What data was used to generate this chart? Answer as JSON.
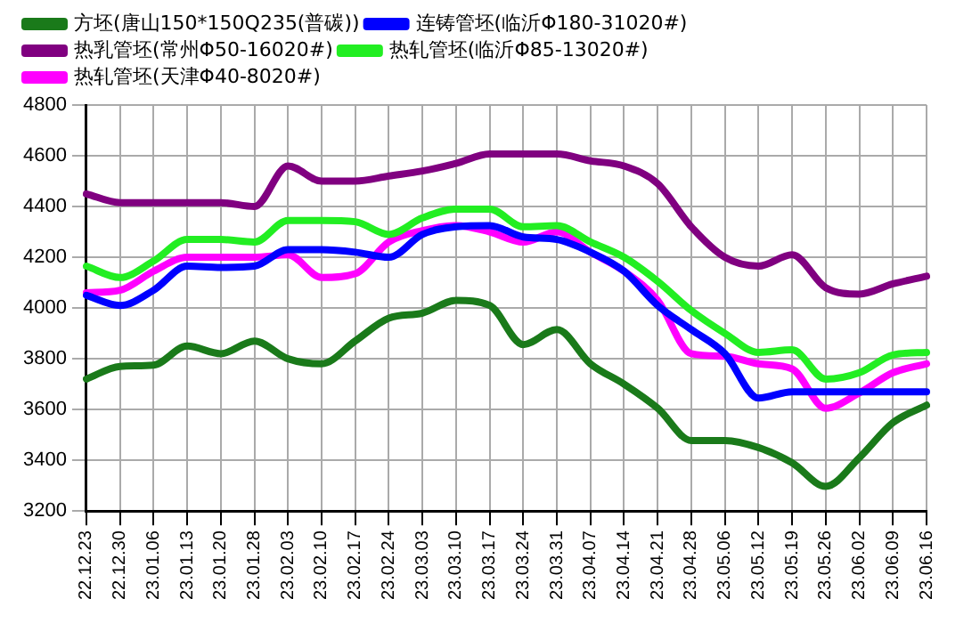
{
  "chart_data": {
    "type": "line",
    "categories": [
      "22.12.23",
      "22.12.30",
      "23.01.06",
      "23.01.13",
      "23.01.20",
      "23.01.28",
      "23.02.03",
      "23.02.10",
      "23.02.17",
      "23.02.24",
      "23.03.03",
      "23.03.10",
      "23.03.17",
      "23.03.24",
      "23.03.31",
      "23.04.07",
      "23.04.14",
      "23.04.21",
      "23.04.28",
      "23.05.06",
      "23.05.12",
      "23.05.19",
      "23.05.26",
      "23.06.02",
      "23.06.09",
      "23.06.16"
    ],
    "series": [
      {
        "name": "方坯(唐山150*150Q235(普碳))",
        "color": "#1a7a1a",
        "values": [
          3720,
          3770,
          3775,
          3850,
          3820,
          3870,
          3800,
          3780,
          3870,
          3960,
          3980,
          4030,
          4010,
          3856,
          3915,
          3780,
          3700,
          3605,
          3478,
          3478,
          3450,
          3390,
          3297,
          3410,
          3548,
          3617
        ]
      },
      {
        "name": "连铸管坯(临沂Φ180-31020#)",
        "color": "#0000ff",
        "values": [
          4050,
          4010,
          4070,
          4165,
          4160,
          4165,
          4230,
          4230,
          4220,
          4200,
          4290,
          4320,
          4325,
          4280,
          4270,
          4220,
          4145,
          4010,
          3915,
          3820,
          3645,
          3670,
          3670,
          3670,
          3670,
          3670
        ]
      },
      {
        "name": "热乳管坯(常州Φ50-16020#)",
        "color": "#800080",
        "values": [
          4450,
          4415,
          4415,
          4415,
          4415,
          4400,
          4560,
          4500,
          4500,
          4520,
          4540,
          4570,
          4607,
          4607,
          4607,
          4580,
          4560,
          4490,
          4320,
          4200,
          4165,
          4210,
          4080,
          4055,
          4095,
          4125
        ]
      },
      {
        "name": "热轧管坯(临沂Φ85-13020#)",
        "color": "#22ee22",
        "values": [
          4165,
          4120,
          4185,
          4270,
          4270,
          4260,
          4345,
          4345,
          4340,
          4290,
          4355,
          4390,
          4390,
          4320,
          4325,
          4260,
          4200,
          4105,
          3990,
          3900,
          3825,
          3835,
          3720,
          3745,
          3815,
          3825
        ]
      },
      {
        "name": "热轧管坯(天津Φ40-8020#)",
        "color": "#ff00ff",
        "values": [
          4060,
          4070,
          4145,
          4200,
          4200,
          4200,
          4210,
          4120,
          4135,
          4260,
          4305,
          4325,
          4300,
          4260,
          4300,
          4220,
          4145,
          4030,
          3820,
          3810,
          3780,
          3760,
          3605,
          3665,
          3745,
          3780
        ]
      }
    ],
    "ylim": [
      3200,
      4800
    ],
    "yticks": [
      3200,
      3400,
      3600,
      3800,
      4000,
      4200,
      4400,
      4600,
      4800
    ],
    "grid": true,
    "legend": "top",
    "line_style": "solid",
    "marker": "none"
  }
}
